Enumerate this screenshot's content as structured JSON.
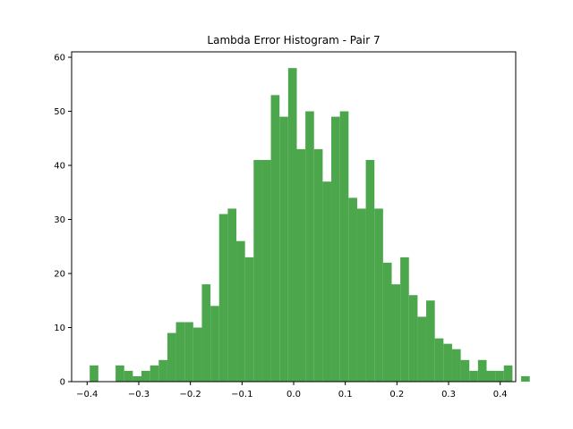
{
  "chart_data": {
    "type": "bar",
    "title": "Lambda Error Histogram - Pair 7",
    "xlabel": "",
    "ylabel": "",
    "xlim": [
      -0.43,
      0.43
    ],
    "ylim": [
      0,
      61
    ],
    "bin_start": -0.395,
    "bin_width": 0.01671,
    "values": [
      3,
      0,
      0,
      3,
      2,
      1,
      2,
      3,
      4,
      9,
      11,
      11,
      10,
      18,
      14,
      31,
      32,
      26,
      23,
      41,
      41,
      53,
      49,
      58,
      43,
      50,
      43,
      37,
      49,
      50,
      34,
      32,
      41,
      32,
      22,
      18,
      23,
      16,
      12,
      15,
      8,
      7,
      6,
      4,
      2,
      4,
      2,
      2,
      3,
      0,
      1
    ],
    "bar_color": "#4ca64c",
    "grid": false,
    "x_ticks": [
      {
        "value": -0.4,
        "label": "−0.4"
      },
      {
        "value": -0.3,
        "label": "−0.3"
      },
      {
        "value": -0.2,
        "label": "−0.2"
      },
      {
        "value": -0.1,
        "label": "−0.1"
      },
      {
        "value": 0.0,
        "label": "0.0"
      },
      {
        "value": 0.1,
        "label": "0.1"
      },
      {
        "value": 0.2,
        "label": "0.2"
      },
      {
        "value": 0.3,
        "label": "0.3"
      },
      {
        "value": 0.4,
        "label": "0.4"
      }
    ],
    "y_ticks": [
      {
        "value": 0,
        "label": "0"
      },
      {
        "value": 10,
        "label": "10"
      },
      {
        "value": 20,
        "label": "20"
      },
      {
        "value": 30,
        "label": "30"
      },
      {
        "value": 40,
        "label": "40"
      },
      {
        "value": 50,
        "label": "50"
      },
      {
        "value": 60,
        "label": "60"
      }
    ]
  }
}
